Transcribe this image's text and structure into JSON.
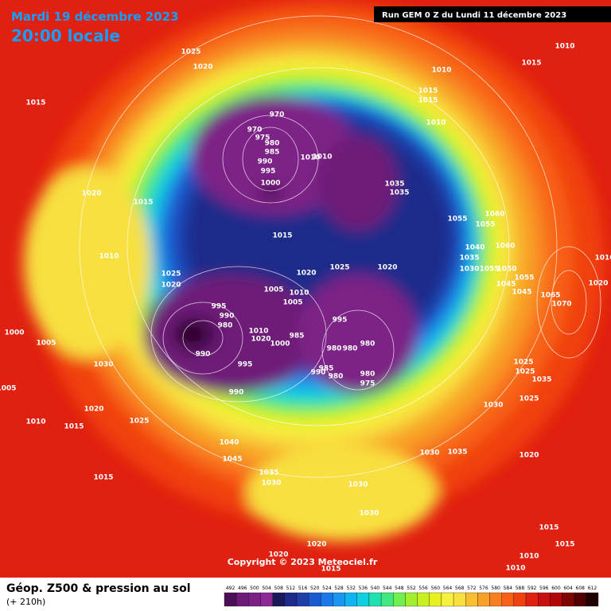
{
  "header": {
    "date": "Mardi 19 décembre 2023",
    "time": "20:00 locale",
    "run": "Run GEM 0 Z du Lundi 11 décembre 2023"
  },
  "footer": {
    "title": "Géop. Z500 & pression au sol",
    "lead": "(+ 210h)",
    "copyright": "Copyright © 2023 Meteociel.fr"
  },
  "scale": {
    "values": [
      492,
      496,
      500,
      504,
      508,
      512,
      516,
      520,
      524,
      528,
      532,
      536,
      540,
      544,
      548,
      552,
      556,
      560,
      564,
      568,
      572,
      576,
      580,
      584,
      588,
      592,
      596,
      600,
      604,
      608,
      612
    ],
    "colors": [
      "#4b0f55",
      "#6e1a78",
      "#7d2086",
      "#8c2896",
      "#1a1a5a",
      "#1e2a8a",
      "#1e3ea8",
      "#1a5ad0",
      "#1a78e8",
      "#1a96f0",
      "#10b4f0",
      "#10d0e0",
      "#20e0b0",
      "#40e880",
      "#70f050",
      "#a0f030",
      "#c8f020",
      "#e8f020",
      "#f8f040",
      "#f8e040",
      "#f8c030",
      "#f8a028",
      "#f88020",
      "#f86018",
      "#f04010",
      "#e02010",
      "#c81010",
      "#b00808",
      "#800404",
      "#500000",
      "#200000"
    ]
  },
  "isobar_labels": [
    1025,
    1020,
    1015,
    1010,
    1015,
    1010,
    1015,
    1015,
    1010,
    970,
    970,
    975,
    980,
    985,
    990,
    995,
    1000,
    1010,
    1010,
    1035,
    1035,
    1020,
    1015,
    1055,
    1060,
    1055,
    1010,
    1015,
    1040,
    1060,
    1035,
    1055,
    1050,
    1030,
    1025,
    1020,
    1020,
    1025,
    1020,
    1055,
    1045,
    1045,
    1020,
    1005,
    1010,
    1005,
    1065,
    1070,
    995,
    990,
    995,
    980,
    1010,
    1020,
    985,
    1000,
    980,
    980,
    980,
    1000,
    1005,
    990,
    985,
    990,
    980,
    980,
    975,
    995,
    1030,
    1025,
    1025,
    1035,
    1005,
    990,
    1025,
    1020,
    1030,
    1010,
    1015,
    1025,
    1040,
    1030,
    1035,
    1045,
    1020,
    1035,
    1030,
    1030,
    1015,
    1030,
    1015,
    1015,
    1020,
    1020,
    1015,
    1010,
    1010,
    1010
  ]
}
